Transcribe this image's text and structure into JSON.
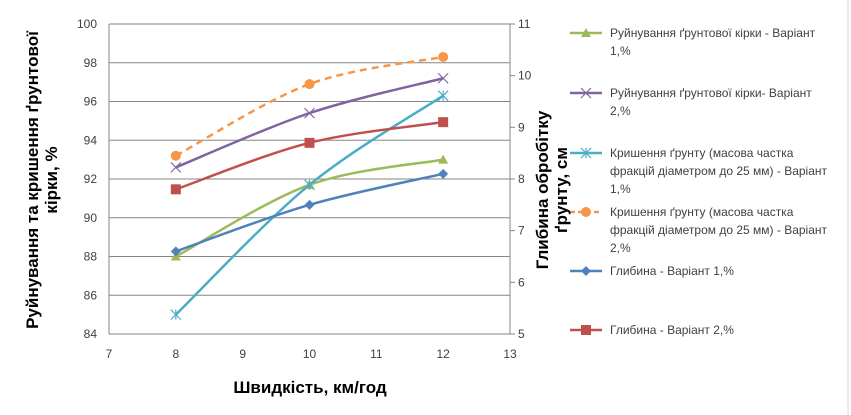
{
  "chart_data": {
    "type": "line",
    "xlabel": "Швидкість, км/год",
    "ylabel": "Руйнування та кришення ґрунтової кірки, %",
    "y2label": "Глибина обробітку ґрунту, см",
    "xlim": [
      7,
      13
    ],
    "ylim": [
      84,
      100
    ],
    "y2lim": [
      5,
      11
    ],
    "xticks": [
      "7",
      "8",
      "9",
      "10",
      "11",
      "12",
      "13"
    ],
    "yticks": [
      "84",
      "86",
      "88",
      "90",
      "92",
      "94",
      "96",
      "98",
      "100"
    ],
    "y2ticks": [
      "5",
      "6",
      "7",
      "8",
      "9",
      "10",
      "11"
    ],
    "grid": true,
    "legend_position": "right",
    "x": [
      8,
      10,
      12
    ],
    "series": [
      {
        "name": "Руйнування ґрунтової кірки - Варіант 1,%",
        "legend_lines": [
          "Руйнування ґрунтової кірки - Варіант",
          "1,%"
        ],
        "axis": "left",
        "values": [
          88.0,
          91.7,
          93.0
        ],
        "color": "#9bbb59",
        "marker": "triangle",
        "dashed": false
      },
      {
        "name": "Руйнування ґрунтової кірки- Варіант 2,%",
        "legend_lines": [
          "Руйнування ґрунтової кірки- Варіант",
          "2,%"
        ],
        "axis": "left",
        "values": [
          92.6,
          95.4,
          97.2
        ],
        "color": "#8064a2",
        "marker": "x",
        "dashed": false
      },
      {
        "name": "Кришення ґрунту (масова частка фракцій діаметром до 25 мм) - Варіант 1,%",
        "legend_lines": [
          "Кришення ґрунту (масова частка",
          "фракцій діаметром до 25 мм) - Варіант",
          "1,%"
        ],
        "axis": "left",
        "values": [
          85.0,
          91.7,
          96.3
        ],
        "color": "#4bacc6",
        "marker": "star",
        "dashed": false
      },
      {
        "name": "Кришення ґрунту (масова частка фракцій діаметром до 25 мм) - Варіант 2,%",
        "legend_lines": [
          "Кришення ґрунту (масова частка",
          "фракцій діаметром до 25 мм) - Варіант",
          "2,%"
        ],
        "axis": "left",
        "values": [
          93.2,
          96.9,
          98.3
        ],
        "color": "#f79646",
        "marker": "circle",
        "dashed": true
      },
      {
        "name": "Глибина - Варіант 1,%",
        "legend_lines": [
          "Глибина - Варіант 1,%"
        ],
        "axis": "right",
        "values": [
          6.6,
          7.5,
          8.1
        ],
        "color": "#4f81bd",
        "marker": "diamond",
        "dashed": false
      },
      {
        "name": "Глибина - Варіант 2,%",
        "legend_lines": [
          "Глибина - Варіант 2,%"
        ],
        "axis": "right",
        "values": [
          7.8,
          8.7,
          9.1
        ],
        "color": "#c0504d",
        "marker": "square",
        "dashed": false
      }
    ]
  }
}
